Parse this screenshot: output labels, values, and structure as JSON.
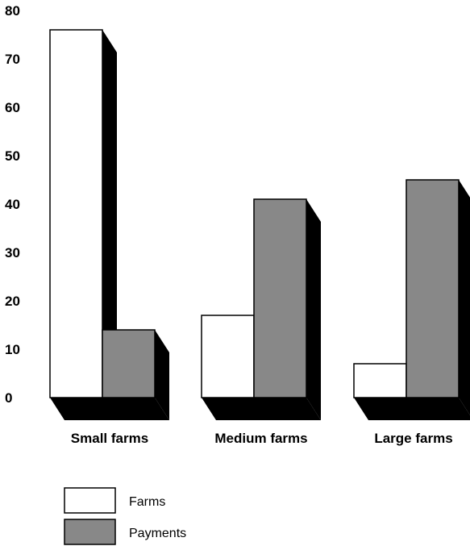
{
  "chart_data": {
    "type": "bar",
    "style": "3d",
    "categories": [
      "Small farms",
      "Medium farms",
      "Large farms"
    ],
    "series": [
      {
        "name": "Farms",
        "values": [
          76,
          17,
          7
        ],
        "color": "#ffffff"
      },
      {
        "name": "Payments",
        "values": [
          14,
          41,
          45
        ],
        "color": "#888888"
      }
    ],
    "y_ticks": [
      0,
      10,
      20,
      30,
      40,
      50,
      60,
      70,
      80
    ],
    "ylim": [
      0,
      80
    ],
    "grid": false,
    "legend_position": "bottom-left",
    "shadow_color": "#000000"
  }
}
